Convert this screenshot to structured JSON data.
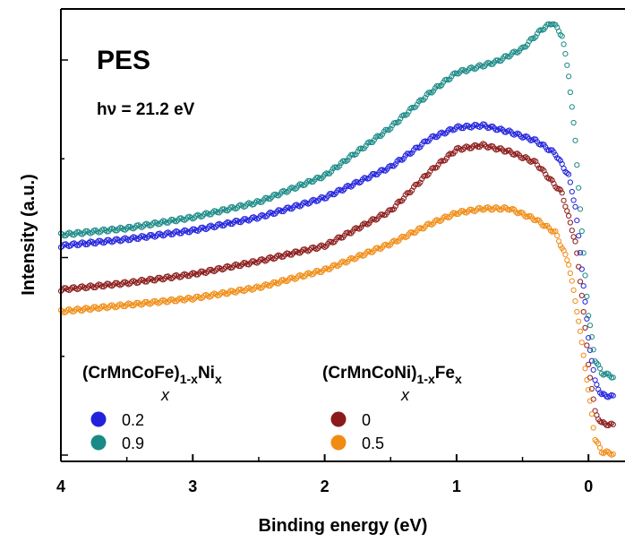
{
  "chart_data": {
    "type": "scatter",
    "title": "PES",
    "annotation": "hν = 21.2 eV",
    "xlabel": "Binding energy (eV)",
    "ylabel": "Intensity (a.u.)",
    "xlim": [
      4,
      -0.25
    ],
    "x_reversed": true,
    "ylim": [
      0,
      100
    ],
    "x_ticks": [
      "4",
      "3",
      "2",
      "1",
      "0"
    ],
    "y_ticks_labeled": false,
    "legend": [
      {
        "title": "(CrMnCoFe)",
        "title_sub": "1-x",
        "title_tail": "Ni",
        "title_tail_sub": "x",
        "column_label": "x",
        "entries": [
          {
            "label": "0.2",
            "series": 0
          },
          {
            "label": "0.9",
            "series": 1
          }
        ]
      },
      {
        "title": "(CrMnCoNi)",
        "title_sub": "1-x",
        "title_tail": "Fe",
        "title_tail_sub": "x",
        "column_label": "x",
        "entries": [
          {
            "label": "0",
            "series": 2
          },
          {
            "label": "0.5",
            "series": 3
          }
        ]
      }
    ],
    "series": [
      {
        "name": "0.2",
        "color": "#2222dd",
        "points": [
          [
            4,
            49
          ],
          [
            3.5,
            50.5
          ],
          [
            3,
            52.5
          ],
          [
            2.5,
            55.5
          ],
          [
            2,
            60
          ],
          [
            1.5,
            67
          ],
          [
            1.2,
            73.5
          ],
          [
            1,
            76
          ],
          [
            0.8,
            76.5
          ],
          [
            0.6,
            75
          ],
          [
            0.4,
            73
          ],
          [
            0.25,
            70
          ],
          [
            0.15,
            65
          ],
          [
            0.1,
            58
          ],
          [
            0.05,
            44
          ],
          [
            0,
            28
          ],
          [
            -0.05,
            18
          ],
          [
            -0.1,
            15
          ],
          [
            -0.2,
            14.5
          ]
        ]
      },
      {
        "name": "0.9",
        "color": "#1a8a86",
        "points": [
          [
            4,
            51.5
          ],
          [
            3.5,
            53
          ],
          [
            3,
            55.5
          ],
          [
            2.5,
            59
          ],
          [
            2,
            65
          ],
          [
            1.5,
            76
          ],
          [
            1.2,
            84
          ],
          [
            1,
            88.5
          ],
          [
            0.7,
            91
          ],
          [
            0.5,
            94
          ],
          [
            0.35,
            98.5
          ],
          [
            0.27,
            100
          ],
          [
            0.2,
            97
          ],
          [
            0.15,
            88
          ],
          [
            0.1,
            73
          ],
          [
            0.05,
            52
          ],
          [
            0,
            33
          ],
          [
            -0.05,
            23
          ],
          [
            -0.1,
            20
          ],
          [
            -0.2,
            19
          ]
        ]
      },
      {
        "name": "0",
        "color": "#8b1a1a",
        "points": [
          [
            4,
            39
          ],
          [
            3.5,
            40.5
          ],
          [
            3,
            42.5
          ],
          [
            2.5,
            45.5
          ],
          [
            2,
            49
          ],
          [
            1.5,
            57
          ],
          [
            1.2,
            66
          ],
          [
            1,
            71
          ],
          [
            0.8,
            72
          ],
          [
            0.6,
            70.5
          ],
          [
            0.4,
            68
          ],
          [
            0.2,
            61
          ],
          [
            0.1,
            50
          ],
          [
            0.05,
            38
          ],
          [
            0,
            22
          ],
          [
            -0.05,
            11
          ],
          [
            -0.1,
            8.5
          ],
          [
            -0.2,
            8
          ]
        ]
      },
      {
        "name": "0.5",
        "color": "#f08c14",
        "points": [
          [
            4,
            34
          ],
          [
            3.5,
            35.5
          ],
          [
            3,
            37
          ],
          [
            2.5,
            39.5
          ],
          [
            2,
            43.5
          ],
          [
            1.5,
            49.5
          ],
          [
            1.2,
            54
          ],
          [
            1,
            56.5
          ],
          [
            0.8,
            57.5
          ],
          [
            0.6,
            57.5
          ],
          [
            0.4,
            55
          ],
          [
            0.25,
            52
          ],
          [
            0.15,
            45
          ],
          [
            0.08,
            33
          ],
          [
            0,
            16
          ],
          [
            -0.05,
            5
          ],
          [
            -0.1,
            2
          ],
          [
            -0.2,
            1.5
          ]
        ]
      }
    ]
  }
}
